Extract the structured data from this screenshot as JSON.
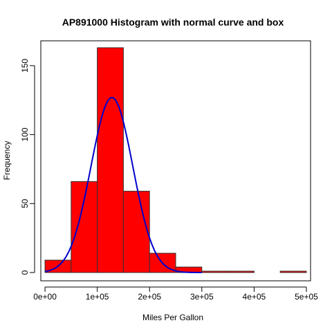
{
  "chart_data": {
    "type": "bar",
    "title": "AP891000 Histogram with normal curve and box",
    "xlabel": "Miles Per Gallon",
    "ylabel": "Frequency",
    "xlim": [
      -8000,
      508000
    ],
    "ylim": [
      -6,
      168
    ],
    "x_ticks": [
      {
        "value": 0,
        "label": "0e+00"
      },
      {
        "value": 100000,
        "label": "1e+05"
      },
      {
        "value": 200000,
        "label": "2e+05"
      },
      {
        "value": 300000,
        "label": "3e+05"
      },
      {
        "value": 400000,
        "label": "4e+05"
      },
      {
        "value": 500000,
        "label": "5e+05"
      }
    ],
    "y_ticks": [
      {
        "value": 0,
        "label": "0"
      },
      {
        "value": 50,
        "label": "50"
      },
      {
        "value": 100,
        "label": "100"
      },
      {
        "value": 150,
        "label": "150"
      }
    ],
    "bins": [
      {
        "x0": 0,
        "x1": 50000,
        "count": 9
      },
      {
        "x0": 50000,
        "x1": 100000,
        "count": 66
      },
      {
        "x0": 100000,
        "x1": 150000,
        "count": 163
      },
      {
        "x0": 150000,
        "x1": 200000,
        "count": 59
      },
      {
        "x0": 200000,
        "x1": 250000,
        "count": 14
      },
      {
        "x0": 250000,
        "x1": 300000,
        "count": 4
      },
      {
        "x0": 300000,
        "x1": 350000,
        "count": 1
      },
      {
        "x0": 350000,
        "x1": 400000,
        "count": 1
      },
      {
        "x0": 400000,
        "x1": 450000,
        "count": 0
      },
      {
        "x0": 450000,
        "x1": 500000,
        "count": 1
      }
    ],
    "normal_curve": {
      "mean": 128000,
      "sd": 40000,
      "peak": 127,
      "x_range": [
        0,
        300000
      ]
    },
    "bar_color": "#ff0000",
    "bar_border_color": "#333333",
    "curve_color": "#0000cc",
    "grid": false
  }
}
